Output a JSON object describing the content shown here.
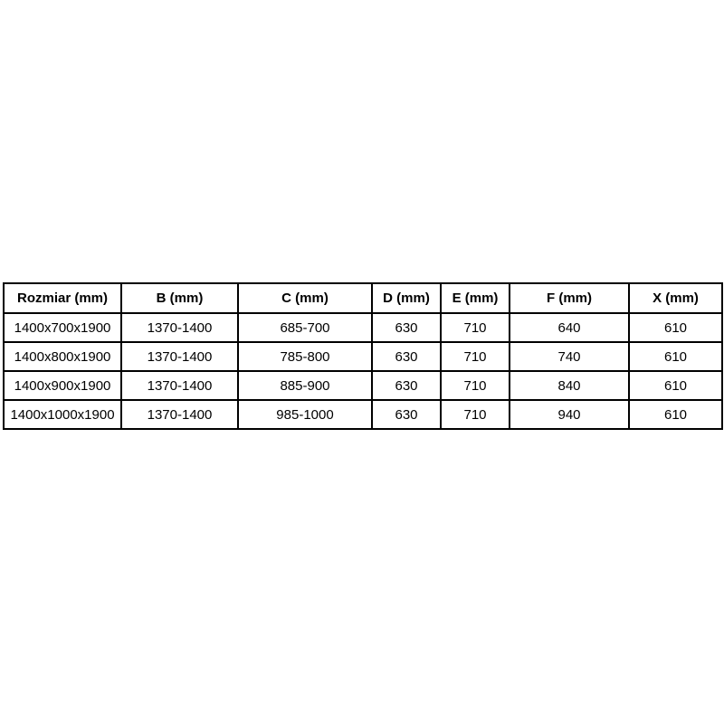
{
  "colors": {
    "background": "#ffffff",
    "table_border": "#000000",
    "text": "#000000"
  },
  "chart_data": {
    "type": "table",
    "title": "",
    "columns": [
      {
        "key": "rozmiar",
        "label": "Rozmiar (mm)"
      },
      {
        "key": "b",
        "label": "B (mm)"
      },
      {
        "key": "c",
        "label": "C (mm)"
      },
      {
        "key": "d",
        "label": "D (mm)"
      },
      {
        "key": "e",
        "label": "E (mm)"
      },
      {
        "key": "f",
        "label": "F (mm)"
      },
      {
        "key": "x",
        "label": "X (mm)"
      }
    ],
    "rows": [
      [
        "1400x700x1900",
        "1370-1400",
        "685-700",
        "630",
        "710",
        "640",
        "610"
      ],
      [
        "1400x800x1900",
        "1370-1400",
        "785-800",
        "630",
        "710",
        "740",
        "610"
      ],
      [
        "1400x900x1900",
        "1370-1400",
        "885-900",
        "630",
        "710",
        "840",
        "610"
      ],
      [
        "1400x1000x1900",
        "1370-1400",
        "985-1000",
        "630",
        "710",
        "940",
        "610"
      ]
    ]
  }
}
